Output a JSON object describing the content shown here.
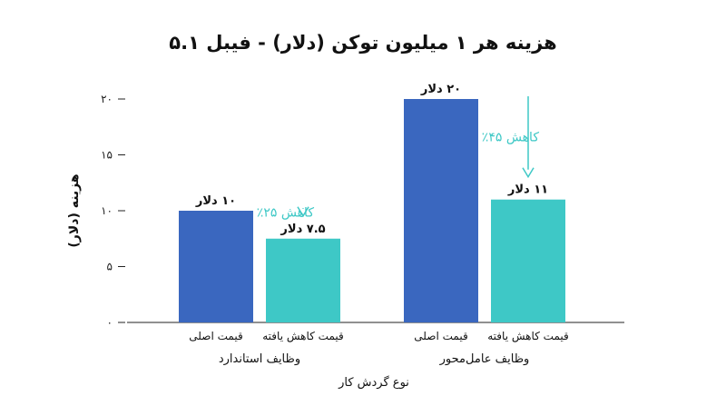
{
  "chart_data": {
    "type": "bar",
    "title": "هزینه هر ۱ میلیون توکن (دلار) - فیبل ۵.۱",
    "ylabel": "هزینه (دلار)",
    "xlabel": "نوع گردش کار",
    "ylim": [
      0,
      20
    ],
    "yticks": [
      0,
      5,
      10,
      15,
      20
    ],
    "ytick_labels": [
      "۰",
      "۵",
      "۱۰",
      "۱۵",
      "۲۰"
    ],
    "grid": false,
    "groups": [
      {
        "label": "وظایف استاندارد",
        "bars": [
          {
            "category": "قیمت اصلی",
            "value": 10,
            "label": "۱۰ دلار"
          },
          {
            "category": "قیمت کاهش یافته",
            "value": 7.5,
            "label": "۷.۵ دلار"
          }
        ],
        "reduction_label": "کاهش ۲۵٪"
      },
      {
        "label": "وظایف عامل‌محور",
        "bars": [
          {
            "category": "قیمت اصلی",
            "value": 20,
            "label": "۲۰ دلار"
          },
          {
            "category": "قیمت کاهش یافته",
            "value": 11,
            "label": "۱۱ دلار"
          }
        ],
        "reduction_label": "کاهش ۴۵٪"
      }
    ]
  },
  "colors": {
    "original": "#3a67bf",
    "reduced": "#3ec8c6",
    "arrow": "#3ec8c6",
    "axis": "#222222"
  }
}
